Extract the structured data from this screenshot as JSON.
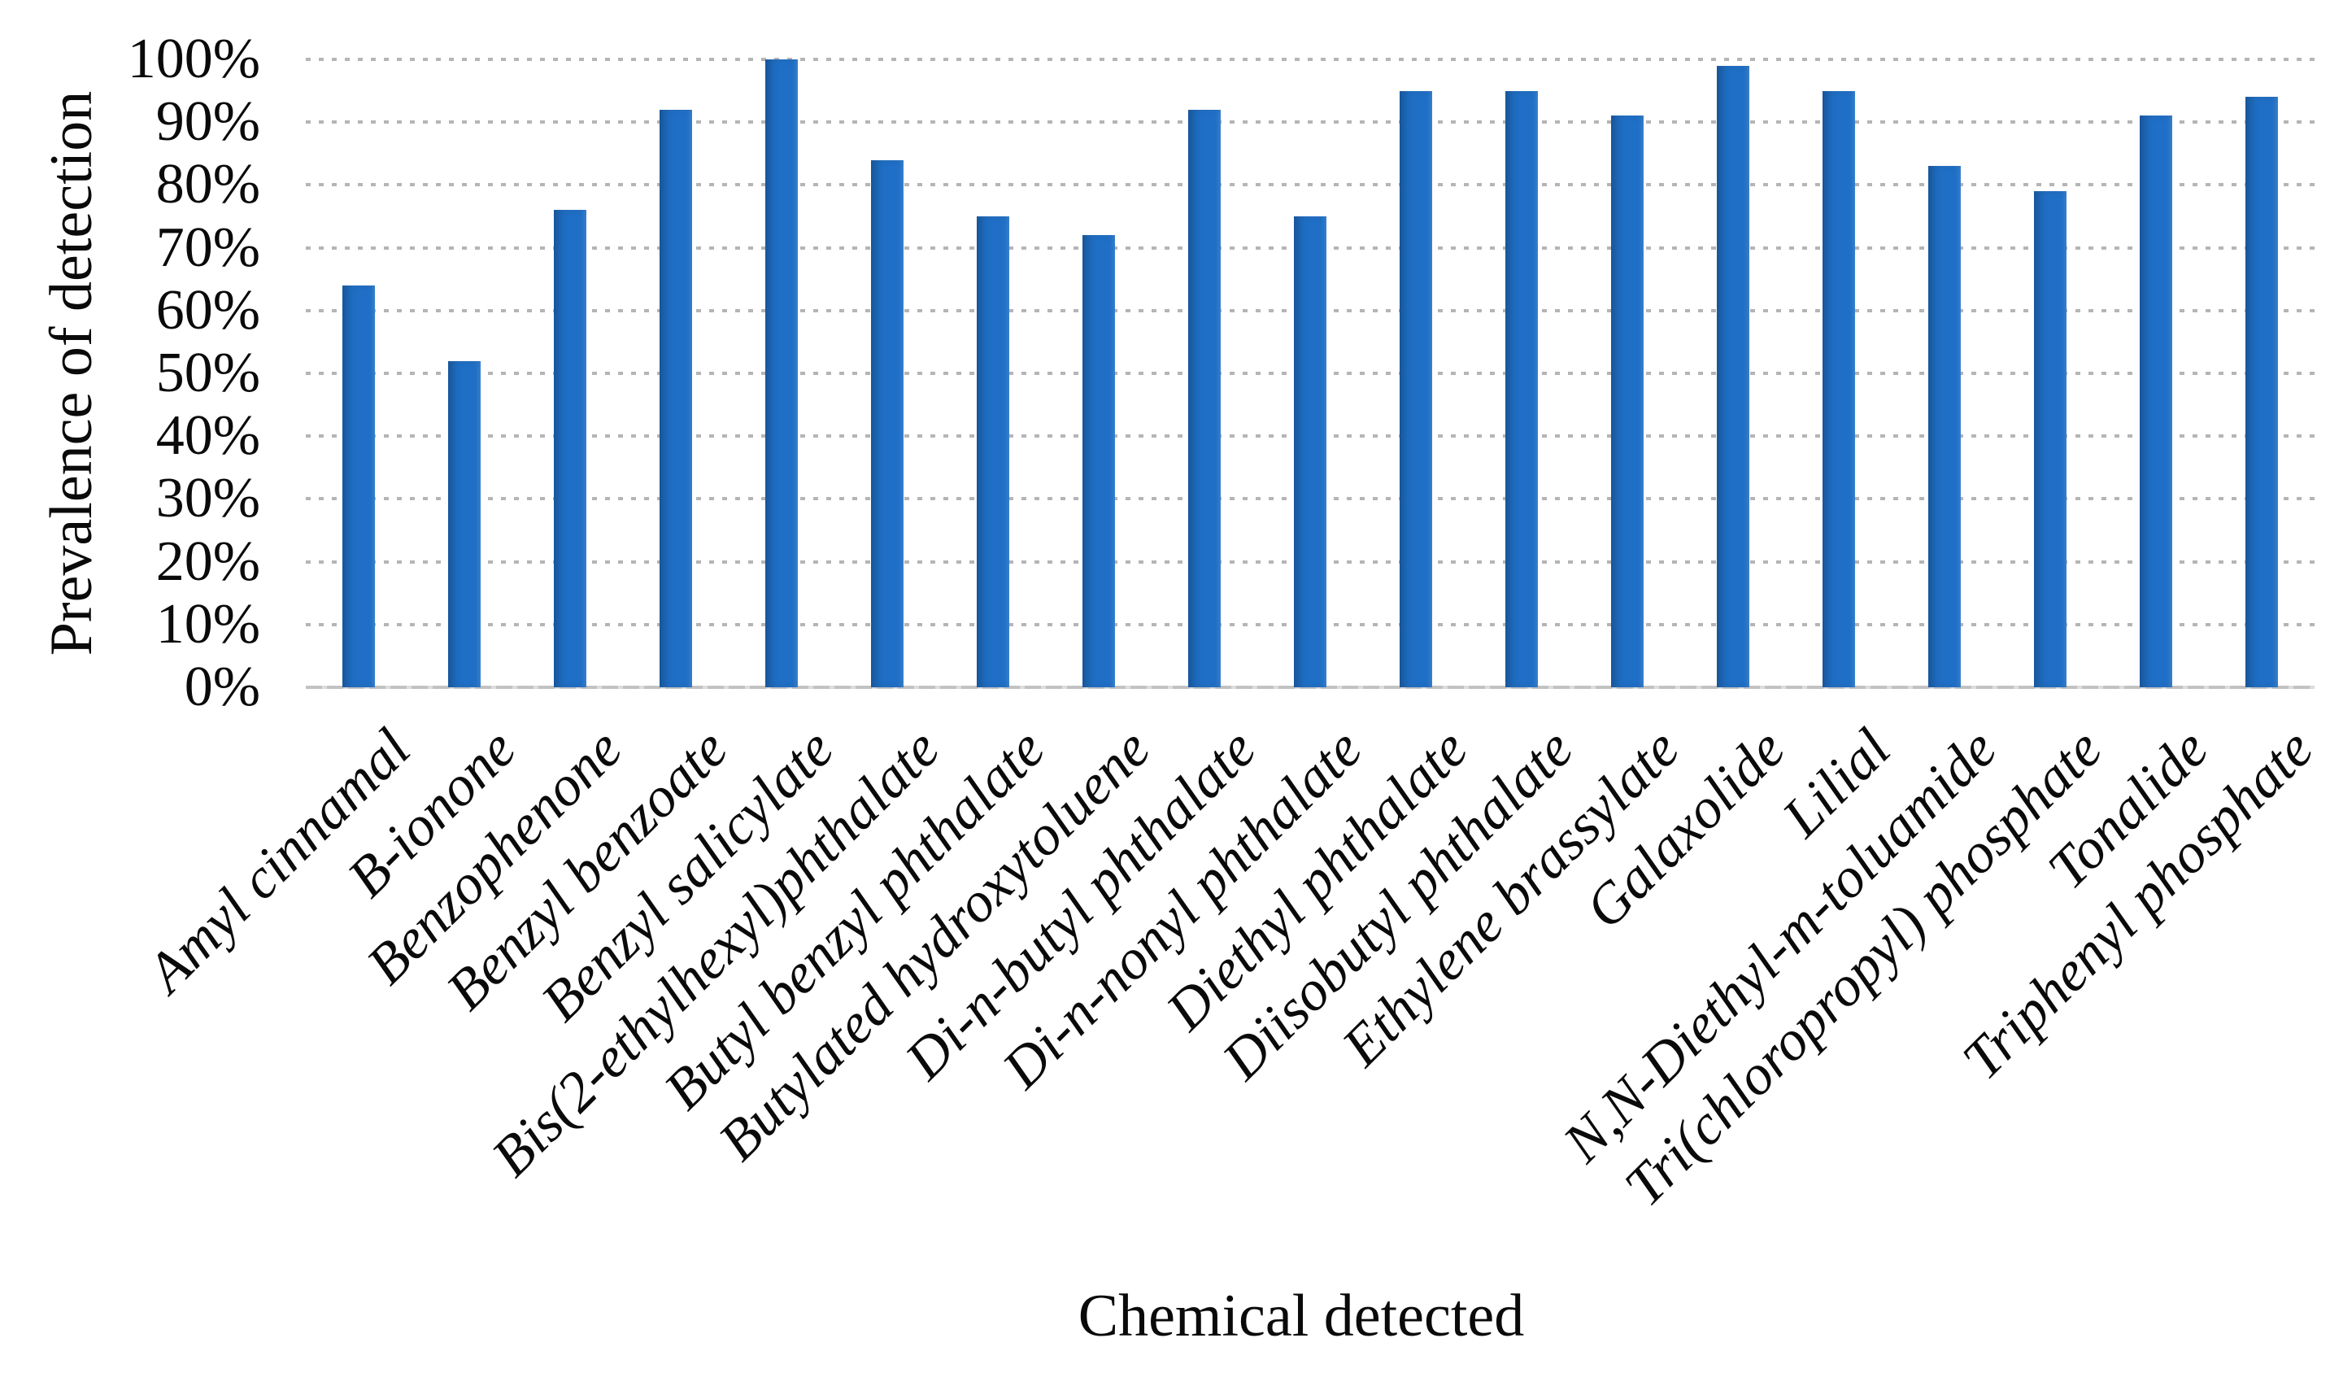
{
  "chart_data": {
    "type": "bar",
    "title": "",
    "xlabel": "Chemical detected",
    "ylabel": "Prevalence of detection",
    "categories": [
      "Amyl cinnamal",
      "B-ionone",
      "Benzophenone",
      "Benzyl benzoate",
      "Benzyl salicylate",
      "Bis(2-ethylhexyl)phthalate",
      "Butyl benzyl phthalate",
      "Butylated hydroxytoluene",
      "Di-n-butyl phthalate",
      "Di-n-nonyl phthalate",
      "Diethyl phthalate",
      "Diisobutyl phthalate",
      "Ethylene brassylate",
      "Galaxolide",
      "Lilial",
      "N,N-Diethyl-m-toluamide",
      "Tri(chloropropyl) phosphate",
      "Tonalide",
      "Triphenyl phosphate"
    ],
    "values": [
      64,
      52,
      76,
      92,
      100,
      84,
      75,
      72,
      92,
      75,
      95,
      95,
      91,
      99,
      95,
      83,
      79,
      91,
      94
    ],
    "y_ticks": [
      "0%",
      "10%",
      "20%",
      "30%",
      "40%",
      "50%",
      "60%",
      "70%",
      "80%",
      "90%",
      "100%"
    ],
    "ylim": [
      0,
      100
    ],
    "y_tick_step": 10,
    "grid": "horizontal dotted gridlines at every 10%, plus dotted line at 100%",
    "legend": "none",
    "colors": {
      "bar": "#1F6FC6",
      "gridline": "#B5B5B5",
      "axis_line": "#C2C2C2",
      "text": "#0A0A0A",
      "background": "#FFFFFF"
    }
  }
}
